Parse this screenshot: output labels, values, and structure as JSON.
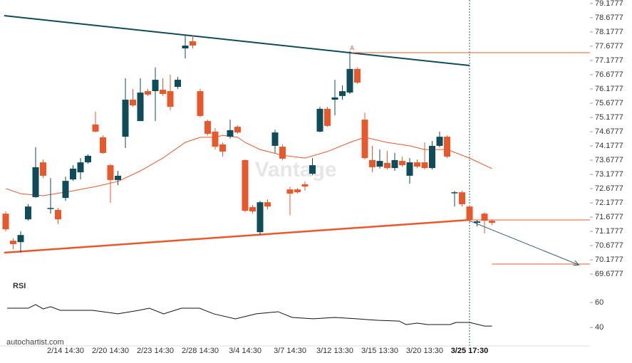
{
  "chart_data": {
    "type": "candlestick",
    "watermark": "Vantage",
    "source": "autochartist.com",
    "categories": [
      null,
      null,
      null,
      null,
      null,
      null,
      null,
      null,
      "2/14 14:30",
      null,
      null,
      null,
      null,
      null,
      "2/20 14:30",
      null,
      null,
      null,
      null,
      null,
      "2/23 14:30",
      null,
      null,
      null,
      null,
      null,
      "2/28 14:30",
      null,
      null,
      null,
      null,
      null,
      "3/4 14:30",
      null,
      null,
      null,
      null,
      null,
      "3/7 14:30",
      null,
      null,
      null,
      null,
      null,
      "3/12 13:30",
      null,
      null,
      null,
      null,
      null,
      "3/15 13:30",
      null,
      null,
      null,
      null,
      null,
      "3/20 13:30",
      null,
      null,
      null,
      null,
      null,
      "3/25 17:30",
      null,
      null,
      null
    ],
    "highlight_category": 62,
    "open": [
      71.8,
      70.85,
      70.8,
      71.6,
      72.38,
      73.6,
      71.98,
      71.93,
      72.35,
      73.0,
      73.25,
      73.6,
      74.93,
      74.48,
      73.5,
      72.98,
      74.5,
      75.8,
      75.05,
      76.1,
      76.1,
      76.15,
      76.1,
      76.25,
      77.6,
      77.85,
      76.1,
      75.05,
      74.68,
      74.23,
      74.5,
      74.85,
      73.68,
      72.03,
      71.15,
      72.2,
      74.18,
      74.15,
      72.65,
      72.65,
      72.83,
      73.2,
      74.68,
      75.48,
      75.8,
      75.93,
      76.05,
      76.88,
      75.1,
      73.68,
      73.45,
      73.58,
      73.4,
      73.65,
      73.13,
      73.6,
      73.6,
      73.4,
      74.18,
      74.5,
      72.53,
      72.55,
      72.05,
      71.48,
      71.8,
      71.55
    ],
    "high": [
      71.88,
      70.93,
      71.18,
      72.13,
      74.13,
      73.7,
      73.05,
      72.0,
      73.1,
      73.5,
      73.75,
      73.88,
      75.38,
      74.55,
      73.55,
      73.3,
      76.55,
      76.18,
      76.55,
      76.18,
      76.93,
      76.55,
      76.68,
      76.6,
      78.05,
      78.05,
      76.18,
      75.1,
      74.8,
      74.3,
      75.1,
      74.9,
      73.7,
      72.1,
      72.25,
      72.3,
      74.75,
      74.23,
      72.75,
      72.7,
      72.93,
      73.75,
      75.55,
      75.55,
      76.5,
      76.3,
      77.5,
      76.93,
      75.35,
      74.18,
      74.05,
      74.0,
      73.93,
      73.8,
      73.75,
      73.7,
      74.3,
      74.35,
      74.68,
      74.55,
      72.6,
      72.6,
      72.1,
      71.58,
      71.85,
      71.6
    ],
    "low": [
      71.18,
      70.55,
      70.43,
      71.55,
      72.35,
      73.05,
      71.8,
      71.43,
      72.25,
      72.95,
      73.0,
      73.55,
      74.65,
      73.9,
      72.18,
      72.8,
      74.1,
      75.55,
      75.05,
      75.93,
      75.05,
      75.93,
      75.43,
      76.18,
      77.25,
      77.6,
      75.18,
      74.55,
      74.05,
      73.8,
      74.43,
      74.6,
      71.85,
      71.8,
      71.05,
      71.95,
      73.93,
      73.68,
      71.75,
      72.5,
      72.6,
      73.15,
      74.65,
      74.85,
      75.25,
      75.8,
      76.0,
      76.35,
      73.7,
      73.25,
      73.38,
      73.35,
      73.3,
      73.45,
      72.85,
      73.4,
      73.35,
      73.35,
      74.13,
      73.75,
      72.05,
      72.05,
      71.5,
      71.35,
      71.1,
      71.4
    ],
    "close": [
      71.25,
      70.73,
      71.05,
      72.05,
      73.43,
      73.13,
      72.0,
      71.6,
      72.95,
      73.38,
      73.6,
      73.83,
      74.68,
      73.93,
      72.98,
      73.13,
      75.8,
      75.6,
      76.05,
      75.98,
      76.5,
      76.0,
      75.55,
      76.5,
      77.7,
      77.7,
      75.23,
      74.6,
      74.15,
      73.98,
      74.73,
      74.65,
      71.9,
      71.88,
      72.2,
      72.05,
      74.65,
      73.73,
      72.5,
      72.55,
      72.75,
      73.5,
      75.48,
      74.88,
      75.88,
      76.1,
      76.88,
      76.4,
      73.75,
      73.43,
      73.65,
      73.4,
      73.68,
      73.5,
      73.6,
      73.45,
      73.4,
      74.18,
      74.5,
      73.8,
      72.55,
      72.13,
      71.58,
      71.53,
      71.55,
      71.48
    ],
    "up_color": "#0e4c5a",
    "down_color": "#e8582a",
    "ma": {
      "color": "#e8582a",
      "x": [
        0,
        2,
        5,
        9,
        12,
        15,
        18,
        21,
        24,
        26,
        28,
        29,
        31,
        32,
        34,
        37,
        40,
        43,
        46,
        48,
        51,
        54,
        56,
        59,
        62,
        65
      ],
      "values": [
        72.68,
        72.5,
        72.43,
        72.6,
        72.75,
        72.93,
        73.3,
        73.75,
        74.3,
        74.48,
        74.48,
        74.55,
        74.48,
        74.3,
        74.05,
        73.85,
        73.75,
        73.98,
        74.3,
        74.48,
        74.3,
        74.18,
        74.05,
        74.05,
        73.75,
        73.38
      ]
    },
    "resistance": {
      "color": "#0e4c5a",
      "x": [
        -0.2,
        62
      ],
      "values": [
        78.75,
        77.0
      ]
    },
    "support": {
      "color": "#e8582a",
      "x": [
        -0.2,
        62
      ],
      "values": [
        70.43,
        71.58
      ]
    },
    "level_a": {
      "label": "A",
      "color": "#e8582a",
      "x": [
        46.3,
        78.1
      ],
      "values": [
        77.45,
        77.45
      ]
    },
    "level_break": {
      "color": "#e8582a",
      "x": [
        62,
        78.1
      ],
      "values": [
        71.58,
        71.58
      ]
    },
    "level_target": {
      "color": "#e8582a",
      "x": [
        65,
        78.1
      ],
      "values": [
        70.03,
        70.03
      ]
    },
    "forecast": {
      "color": "#2c5d6a",
      "x": [
        62,
        76.6
      ],
      "values": [
        71.55,
        70.0
      ]
    },
    "ylim": [
      69.43,
      79.3
    ],
    "yticks": [
      79.1777,
      78.6777,
      78.1777,
      77.6777,
      77.1777,
      76.6777,
      76.1777,
      75.6777,
      75.1777,
      74.6777,
      74.1777,
      73.6777,
      73.1777,
      72.6777,
      72.1777,
      71.6777,
      71.1777,
      70.6777,
      70.1777,
      69.6777
    ],
    "rsi": {
      "title": "RSI",
      "color": "#111111",
      "x": [
        0.2,
        3,
        4,
        5,
        6,
        7.3,
        11.6,
        15,
        17.8,
        19.2,
        21.1,
        23.5,
        25.9,
        27.8,
        30.7,
        33.5,
        36.4,
        38.3,
        41.1,
        44,
        46.9,
        49.7,
        52.6,
        53.5,
        55,
        56.4,
        59.4,
        60.2,
        62,
        64,
        65
      ],
      "values": [
        55.4,
        55.4,
        58.3,
        54.9,
        56.6,
        53.7,
        53.7,
        50.9,
        53.7,
        55.4,
        50.9,
        55.4,
        55.4,
        50.9,
        46.9,
        50.9,
        52.6,
        48.0,
        46.9,
        48.0,
        46.9,
        45.7,
        45.1,
        42.3,
        43.4,
        42.3,
        42.3,
        44.0,
        44.0,
        41.1,
        41.1
      ],
      "ylim": [
        28,
        80
      ],
      "yticks": [
        40,
        60
      ]
    }
  }
}
